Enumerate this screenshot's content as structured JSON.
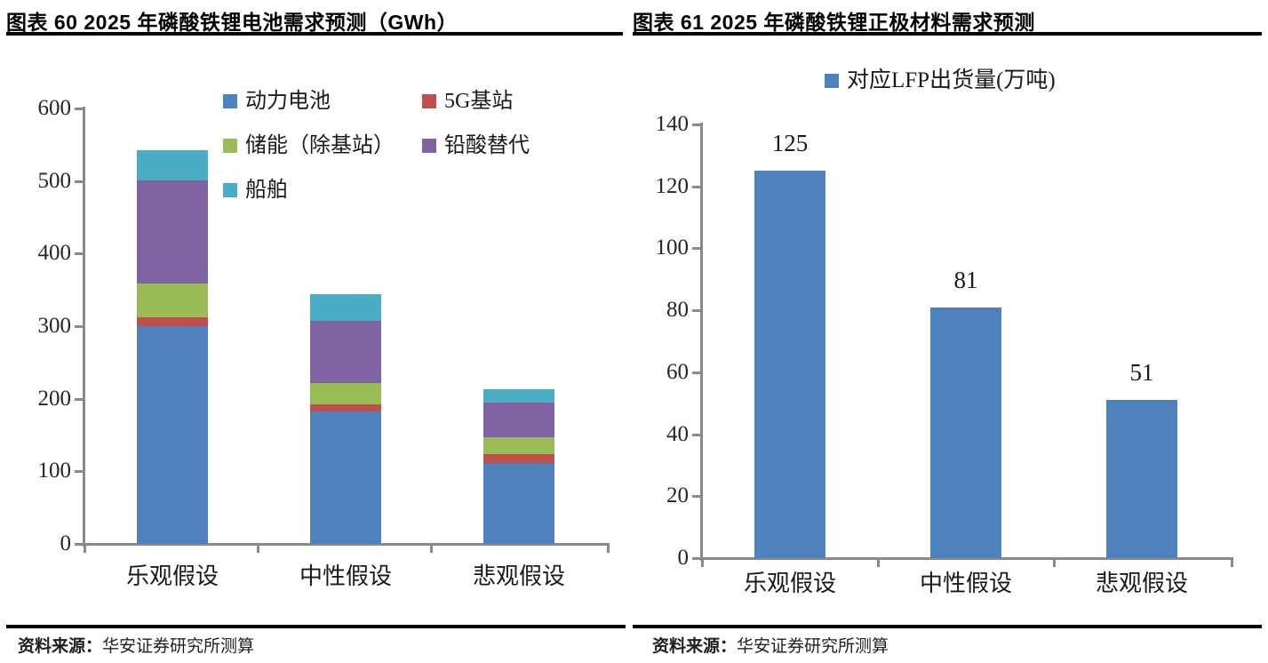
{
  "header": {
    "left_title": "图表 60 2025 年磷酸铁锂电池需求预测（GWh）",
    "right_title": "图表 61 2025 年磷酸铁锂正极材料需求预测"
  },
  "footer": {
    "left": {
      "label": "资料来源：",
      "value": "华安证券研究所测算"
    },
    "right": {
      "label": "资料来源：",
      "value": "华安证券研究所测算"
    }
  },
  "colors": {
    "power_battery_blue": "#4F81BD",
    "g5_station_red": "#C0504D",
    "storage_green": "#9BBB59",
    "lead_acid_purple": "#8064A2",
    "ship_cyan": "#4BACC6",
    "axis_gray": "#8a8a8a",
    "text_dark": "#1a1a1a"
  },
  "chart_data": [
    {
      "type": "bar",
      "stacked": true,
      "title": "2025 年磷酸铁锂电池需求预测（GWh）",
      "categories": [
        "乐观假设",
        "中性假设",
        "悲观假设"
      ],
      "series": [
        {
          "name": "动力电池",
          "color": "#4F81BD",
          "values": [
            300,
            182,
            112
          ]
        },
        {
          "name": "5G基站",
          "color": "#C0504D",
          "values": [
            12,
            10,
            12
          ]
        },
        {
          "name": "储能（除基站）",
          "color": "#9BBB59",
          "values": [
            47,
            30,
            23
          ]
        },
        {
          "name": "铅酸替代",
          "color": "#8064A2",
          "values": [
            142,
            85,
            48
          ]
        },
        {
          "name": "船舶",
          "color": "#4BACC6",
          "values": [
            41,
            37,
            18
          ]
        }
      ],
      "totals_approx": [
        542,
        344,
        213
      ],
      "xlabel": "",
      "ylabel": "GWh",
      "ylim": [
        0,
        600
      ],
      "ytick_step": 100,
      "grid": false,
      "legend_position": "top"
    },
    {
      "type": "bar",
      "stacked": false,
      "title": "2025 年磷酸铁锂正极材料需求预测",
      "legend": [
        "对应LFP出货量(万吨)"
      ],
      "categories": [
        "乐观假设",
        "中性假设",
        "悲观假设"
      ],
      "values": [
        125,
        81,
        51
      ],
      "data_labels": [
        "125",
        "81",
        "51"
      ],
      "bar_color": "#4F81BD",
      "xlabel": "",
      "ylabel": "万吨",
      "ylim": [
        0,
        140
      ],
      "ytick_step": 20,
      "grid": false,
      "legend_position": "top"
    }
  ]
}
